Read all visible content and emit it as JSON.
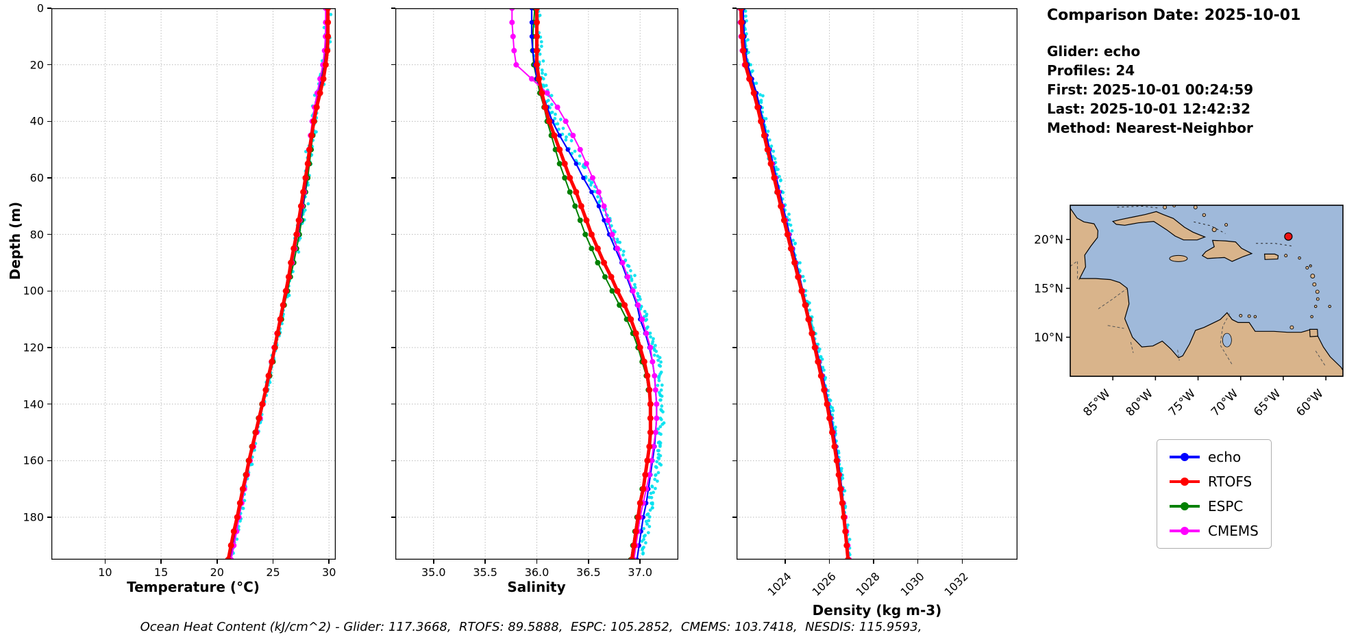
{
  "info": {
    "title": "Comparison Date: 2025-10-01",
    "glider": "Glider: echo",
    "profiles": "Profiles: 24",
    "first": "First: 2025-10-01 00:24:59",
    "last": "Last: 2025-10-01 12:42:32",
    "method": "Method: Nearest-Neighbor"
  },
  "caption": "Ocean Heat Content (kJ/cm^2) - Glider: 117.3668,  RTOFS: 89.5888,  ESPC: 105.2852,  CMEMS: 103.7418,  NESDIS: 115.9593,",
  "legend": {
    "entries": [
      {
        "label": "echo",
        "color": "#0000ff"
      },
      {
        "label": "RTOFS",
        "color": "#ff0000"
      },
      {
        "label": "ESPC",
        "color": "#008000"
      },
      {
        "label": "CMEMS",
        "color": "#ff00ff"
      }
    ]
  },
  "map": {
    "extent": {
      "lon_min": -90,
      "lon_max": -58,
      "lat_min": 6.0,
      "lat_max": 23.5
    },
    "ocean_color": "#9fb9da",
    "land_color": "#d9b48b",
    "marker": {
      "lon": -64.4,
      "lat": 20.3,
      "color": "#ee1111"
    },
    "lat_ticks": [
      {
        "value": 20,
        "label": "20°N"
      },
      {
        "value": 15,
        "label": "15°N"
      },
      {
        "value": 10,
        "label": "10°N"
      }
    ],
    "lon_ticks": [
      {
        "value": -85,
        "label": "85°W"
      },
      {
        "value": -80,
        "label": "80°W"
      },
      {
        "value": -75,
        "label": "75°W"
      },
      {
        "value": -70,
        "label": "70°W"
      },
      {
        "value": -65,
        "label": "65°W"
      },
      {
        "value": -60,
        "label": "60°W"
      }
    ]
  },
  "chart_data": {
    "type": "line",
    "ylabel": "Depth (m)",
    "ylim": [
      0,
      195
    ],
    "yticks": [
      0,
      20,
      40,
      60,
      80,
      100,
      120,
      140,
      160,
      180
    ],
    "ytick_labels": [
      "0",
      "20",
      "40",
      "60",
      "80",
      "100",
      "120",
      "140",
      "160",
      "180"
    ],
    "grid": true,
    "scatter_color": "#00e0ee",
    "scatter_note": "cyan dots = raw glider observations scattered about the echo profile",
    "draw_order": [
      "ESPC",
      "echo",
      "CMEMS",
      "RTOFS"
    ],
    "series_meta": [
      {
        "key": "echo",
        "color": "#0000ff",
        "lw": 2.2,
        "marker_r": 3.2
      },
      {
        "key": "RTOFS",
        "color": "#ff0000",
        "lw": 5,
        "marker_r": 4.5
      },
      {
        "key": "ESPC",
        "color": "#008000",
        "lw": 2,
        "marker_r": 4
      },
      {
        "key": "CMEMS",
        "color": "#ff00ff",
        "lw": 2,
        "marker_r": 4
      }
    ],
    "depths": [
      0,
      5,
      10,
      15,
      20,
      25,
      30,
      35,
      40,
      45,
      50,
      55,
      60,
      65,
      70,
      75,
      80,
      85,
      90,
      95,
      100,
      105,
      110,
      115,
      120,
      125,
      130,
      135,
      140,
      145,
      150,
      155,
      160,
      165,
      170,
      175,
      180,
      185,
      190,
      195
    ],
    "panels": [
      {
        "name": "temperature",
        "xlabel": "Temperature (°C)",
        "xlim": [
          5.2,
          30.6
        ],
        "xticks": [
          10,
          15,
          20,
          25,
          30
        ],
        "xtick_labels": [
          "10",
          "15",
          "20",
          "25",
          "30"
        ],
        "rotate_xticklabels": false,
        "show_yticklabels": true,
        "jitter": 0.45,
        "jitter_bias": 0.05,
        "values": {
          "echo": [
            29.8,
            29.8,
            29.8,
            29.75,
            29.6,
            29.35,
            29.0,
            28.75,
            28.6,
            28.45,
            28.3,
            28.15,
            28.0,
            27.85,
            27.65,
            27.45,
            27.2,
            26.95,
            26.7,
            26.45,
            26.2,
            25.95,
            25.7,
            25.4,
            25.15,
            24.9,
            24.65,
            24.4,
            24.1,
            23.8,
            23.5,
            23.2,
            22.95,
            22.7,
            22.45,
            22.2,
            21.95,
            21.7,
            21.45,
            21.2
          ],
          "RTOFS": [
            29.9,
            29.9,
            29.9,
            29.85,
            29.7,
            29.5,
            29.2,
            28.9,
            28.65,
            28.45,
            28.25,
            28.1,
            27.9,
            27.7,
            27.5,
            27.3,
            27.1,
            26.85,
            26.6,
            26.4,
            26.15,
            25.9,
            25.65,
            25.4,
            25.15,
            24.9,
            24.6,
            24.35,
            24.05,
            23.75,
            23.45,
            23.15,
            22.85,
            22.6,
            22.3,
            22.05,
            21.8,
            21.5,
            21.25,
            21.0
          ],
          "ESPC": [
            29.8,
            29.8,
            29.78,
            29.7,
            29.55,
            29.3,
            29.05,
            28.85,
            28.7,
            28.55,
            28.4,
            28.25,
            28.1,
            27.9,
            27.7,
            27.55,
            27.35,
            27.1,
            26.85,
            26.55,
            26.3,
            26.0,
            25.75,
            25.45,
            25.2,
            25.0,
            24.7,
            24.35,
            24.0,
            23.7,
            23.4,
            23.1,
            22.8,
            22.55,
            22.3,
            22.05,
            21.8,
            21.55,
            21.3,
            21.1
          ],
          "CMEMS": [
            29.7,
            29.7,
            29.68,
            29.6,
            29.45,
            29.2,
            28.95,
            28.7,
            28.5,
            28.35,
            28.2,
            28.1,
            27.95,
            27.8,
            27.6,
            27.4,
            27.2,
            26.95,
            26.7,
            26.45,
            26.2,
            25.9,
            25.65,
            25.35,
            25.1,
            24.85,
            24.6,
            24.35,
            24.1,
            23.85,
            23.55,
            23.25,
            22.95,
            22.7,
            22.45,
            22.2,
            21.95,
            21.75,
            21.5,
            21.25
          ]
        }
      },
      {
        "name": "salinity",
        "xlabel": "Salinity",
        "xlim": [
          34.63,
          37.37
        ],
        "xticks": [
          35.0,
          35.5,
          36.0,
          36.5,
          37.0
        ],
        "xtick_labels": [
          "35.0",
          "35.5",
          "36.0",
          "36.5",
          "37.0"
        ],
        "rotate_xticklabels": false,
        "show_yticklabels": false,
        "jitter": 0.07,
        "jitter_bias": 0.05,
        "values": {
          "echo": [
            35.95,
            35.95,
            35.95,
            35.96,
            35.98,
            36.0,
            36.05,
            36.1,
            36.15,
            36.22,
            36.3,
            36.38,
            36.45,
            36.53,
            36.6,
            36.65,
            36.7,
            36.76,
            36.82,
            36.87,
            36.92,
            36.97,
            37.0,
            37.05,
            37.09,
            37.12,
            37.14,
            37.15,
            37.16,
            37.16,
            37.15,
            37.14,
            37.12,
            37.1,
            37.08,
            37.06,
            37.03,
            37.01,
            36.99,
            36.97
          ],
          "RTOFS": [
            36.0,
            36.0,
            36.0,
            36.0,
            36.0,
            36.02,
            36.05,
            36.08,
            36.12,
            36.17,
            36.22,
            36.27,
            36.32,
            36.38,
            36.43,
            36.48,
            36.53,
            36.59,
            36.65,
            36.72,
            36.78,
            36.85,
            36.91,
            36.96,
            37.0,
            37.04,
            37.07,
            37.09,
            37.1,
            37.1,
            37.1,
            37.09,
            37.07,
            37.05,
            37.03,
            37.0,
            36.98,
            36.96,
            36.94,
            36.92
          ],
          "ESPC": [
            35.98,
            35.97,
            35.96,
            35.96,
            35.97,
            36.0,
            36.03,
            36.07,
            36.1,
            36.14,
            36.18,
            36.22,
            36.27,
            36.32,
            36.37,
            36.42,
            36.47,
            36.53,
            36.59,
            36.66,
            36.73,
            36.8,
            36.87,
            36.93,
            36.98,
            37.02,
            37.06,
            37.08,
            37.1,
            37.1,
            37.1,
            37.09,
            37.07,
            37.05,
            37.02,
            37.0,
            36.97,
            36.95,
            36.93,
            36.91
          ],
          "CMEMS": [
            35.76,
            35.76,
            35.77,
            35.78,
            35.8,
            35.95,
            36.1,
            36.2,
            36.28,
            36.35,
            36.42,
            36.48,
            36.54,
            36.6,
            36.65,
            36.69,
            36.73,
            36.78,
            36.83,
            36.88,
            36.93,
            36.98,
            37.02,
            37.06,
            37.1,
            37.12,
            37.14,
            37.15,
            37.16,
            37.16,
            37.15,
            37.13,
            37.11,
            37.09,
            37.06,
            37.03,
            37.0,
            36.98,
            36.96,
            36.94
          ]
        }
      },
      {
        "name": "density",
        "xlabel": "Density (kg m-3)",
        "xlim": [
          1021.8,
          1034.5
        ],
        "xticks": [
          1024,
          1026,
          1028,
          1030,
          1032
        ],
        "xtick_labels": [
          "1024",
          "1026",
          "1028",
          "1030",
          "1032"
        ],
        "rotate_xticklabels": true,
        "show_yticklabels": false,
        "jitter": 0.25,
        "jitter_bias": 0.03,
        "values": {
          "echo": [
            1022.1,
            1022.12,
            1022.15,
            1022.2,
            1022.3,
            1022.5,
            1022.7,
            1022.85,
            1023.0,
            1023.15,
            1023.3,
            1023.45,
            1023.6,
            1023.75,
            1023.9,
            1024.05,
            1024.2,
            1024.35,
            1024.5,
            1024.65,
            1024.8,
            1024.95,
            1025.1,
            1025.25,
            1025.4,
            1025.55,
            1025.7,
            1025.83,
            1025.96,
            1026.08,
            1026.2,
            1026.3,
            1026.4,
            1026.48,
            1026.56,
            1026.63,
            1026.7,
            1026.76,
            1026.82,
            1026.88
          ],
          "RTOFS": [
            1022.0,
            1022.02,
            1022.05,
            1022.1,
            1022.2,
            1022.38,
            1022.58,
            1022.75,
            1022.9,
            1023.05,
            1023.2,
            1023.35,
            1023.5,
            1023.65,
            1023.8,
            1023.95,
            1024.1,
            1024.26,
            1024.42,
            1024.58,
            1024.74,
            1024.9,
            1025.05,
            1025.2,
            1025.34,
            1025.48,
            1025.62,
            1025.76,
            1025.89,
            1026.0,
            1026.12,
            1026.23,
            1026.33,
            1026.42,
            1026.5,
            1026.58,
            1026.65,
            1026.72,
            1026.78,
            1026.84
          ],
          "ESPC": [
            1022.08,
            1022.1,
            1022.13,
            1022.18,
            1022.28,
            1022.46,
            1022.65,
            1022.8,
            1022.95,
            1023.1,
            1023.25,
            1023.4,
            1023.55,
            1023.7,
            1023.85,
            1024.0,
            1024.15,
            1024.31,
            1024.47,
            1024.63,
            1024.79,
            1024.95,
            1025.1,
            1025.25,
            1025.39,
            1025.53,
            1025.67,
            1025.8,
            1025.93,
            1026.05,
            1026.17,
            1026.27,
            1026.37,
            1026.46,
            1026.54,
            1026.62,
            1026.69,
            1026.75,
            1026.81,
            1026.87
          ],
          "CMEMS": [
            1021.95,
            1021.97,
            1022.0,
            1022.06,
            1022.16,
            1022.36,
            1022.58,
            1022.76,
            1022.92,
            1023.08,
            1023.24,
            1023.4,
            1023.55,
            1023.7,
            1023.85,
            1024.0,
            1024.15,
            1024.3,
            1024.46,
            1024.62,
            1024.78,
            1024.93,
            1025.08,
            1025.23,
            1025.38,
            1025.52,
            1025.66,
            1025.79,
            1025.92,
            1026.04,
            1026.16,
            1026.26,
            1026.36,
            1026.45,
            1026.54,
            1026.62,
            1026.7,
            1026.77,
            1026.83,
            1026.89
          ]
        }
      }
    ]
  }
}
